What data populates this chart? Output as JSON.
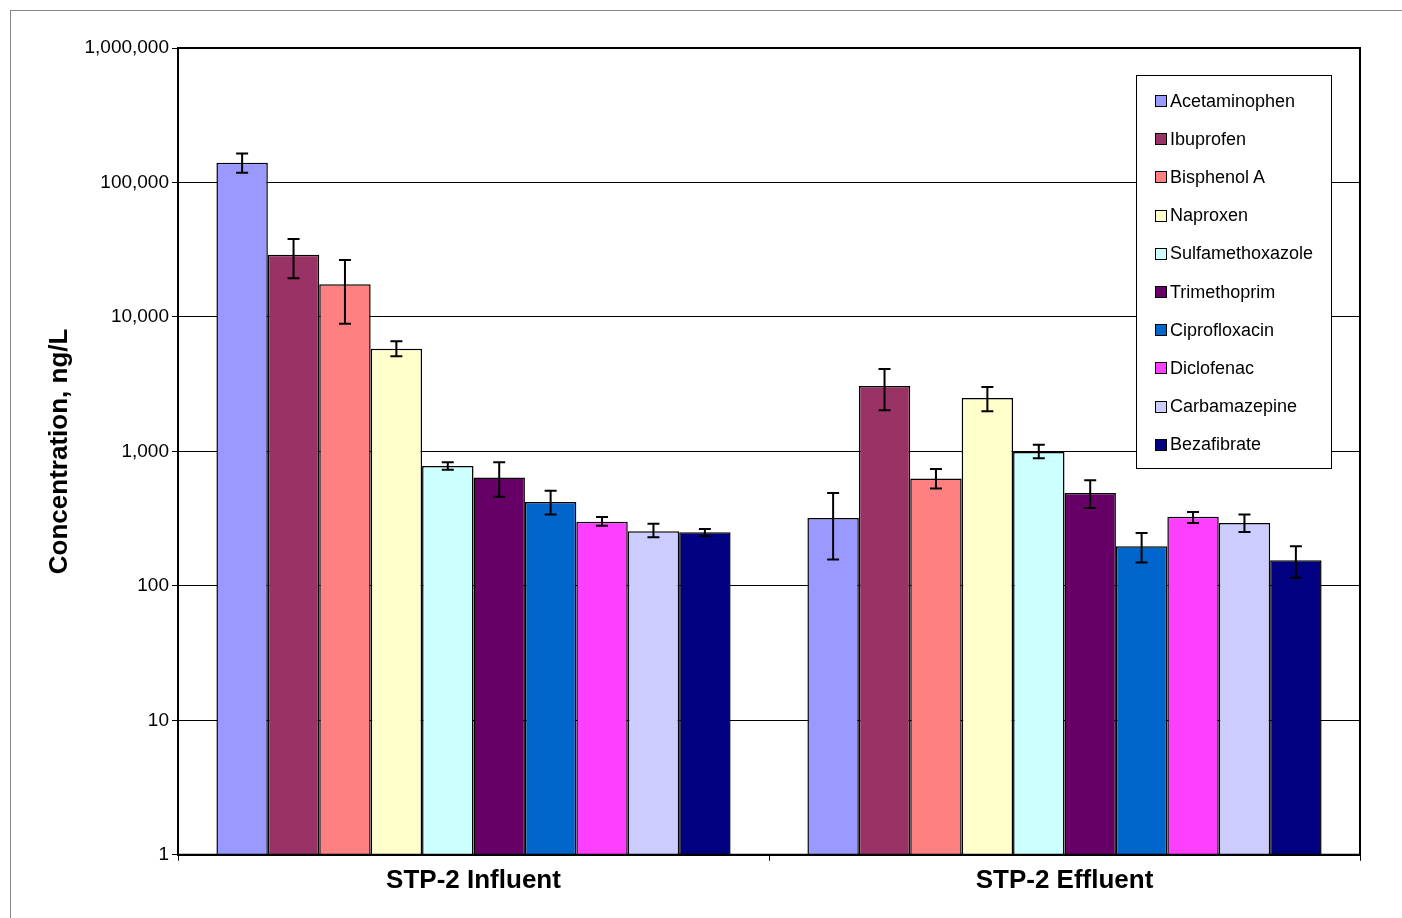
{
  "chart_data": {
    "type": "bar",
    "ylabel": "Concentration, ng/L",
    "categories": [
      "STP-2 Influent",
      "STP-2 Effluent"
    ],
    "series": [
      {
        "name": "Acetaminophen",
        "color": "#9999ff",
        "values": [
          140000,
          320
        ],
        "errors": [
          [
            118000,
            164000
          ],
          [
            157,
            490
          ]
        ]
      },
      {
        "name": "Ibuprofen",
        "color": "#993366",
        "values": [
          29000,
          3070
        ],
        "errors": [
          [
            19400,
            38000
          ],
          [
            2020,
            4100
          ]
        ]
      },
      {
        "name": "Bisphenol A",
        "color": "#ff8080",
        "values": [
          17500,
          630
        ],
        "errors": [
          [
            8900,
            26500
          ],
          [
            530,
            740
          ]
        ]
      },
      {
        "name": "Naproxen",
        "color": "#ffffcc",
        "values": [
          5800,
          2490
        ],
        "errors": [
          [
            5100,
            6600
          ],
          [
            1990,
            3010
          ]
        ]
      },
      {
        "name": "Sulfamethoxazole",
        "color": "#ccffff",
        "values": [
          780,
          990
        ],
        "errors": [
          [
            730,
            830
          ],
          [
            890,
            1120
          ]
        ]
      },
      {
        "name": "Trimethoprim",
        "color": "#660066",
        "values": [
          640,
          490
        ],
        "errors": [
          [
            460,
            830
          ],
          [
            380,
            610
          ]
        ]
      },
      {
        "name": "Ciprofloxacin",
        "color": "#0066cc",
        "values": [
          420,
          197
        ],
        "errors": [
          [
            340,
            510
          ],
          [
            149,
            247
          ]
        ]
      },
      {
        "name": "Diclofenac",
        "color": "#ff3fff",
        "values": [
          300,
          326
        ],
        "errors": [
          [
            280,
            325
          ],
          [
            294,
            355
          ]
        ]
      },
      {
        "name": "Carbamazepine",
        "color": "#ccccff",
        "values": [
          255,
          294
        ],
        "errors": [
          [
            230,
            290
          ],
          [
            251,
            340
          ]
        ]
      },
      {
        "name": "Bezafibrate",
        "color": "#000080",
        "values": [
          250,
          155
        ],
        "errors": [
          [
            235,
            265
          ],
          [
            115,
            197
          ]
        ]
      }
    ],
    "log": "y",
    "ylim": [
      1,
      1000000
    ],
    "yticks": [
      1,
      10,
      100,
      {
        "value": 1000,
        "label": "1,000"
      },
      {
        "value": 10000,
        "label": "10,000"
      },
      {
        "value": 100000,
        "label": "100,000"
      },
      {
        "value": 1000000,
        "label": "1,000,000"
      }
    ],
    "grid": "y",
    "legend": "top right"
  }
}
